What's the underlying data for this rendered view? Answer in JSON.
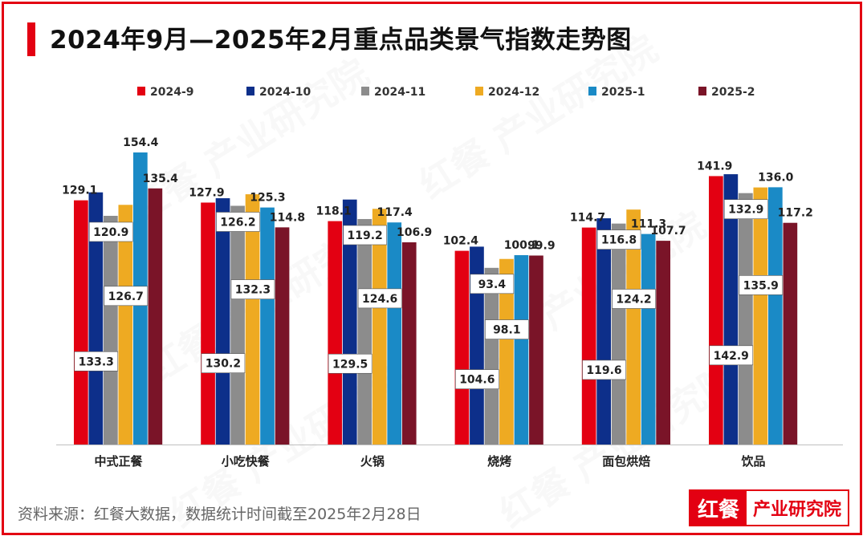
{
  "title": "2024年9月—2025年2月重点品类景气指数走势图",
  "source_text": "资料来源：红餐大数据，数据统计时间截至2025年2月28日",
  "logo": {
    "left": "红餐",
    "right": "产业研究院"
  },
  "watermark_text": "红餐 产业研究院",
  "colors": {
    "accent": "#e30012",
    "series": [
      "#e30012",
      "#0d2f8a",
      "#8c8c8c",
      "#eeaa22",
      "#1a8ac6",
      "#7a1428"
    ]
  },
  "chart_data": {
    "type": "bar",
    "title": "2024年9月—2025年2月重点品类景气指数走势图",
    "xlabel": "",
    "ylabel": "",
    "categories": [
      "中式正餐",
      "小吃快餐",
      "火锅",
      "烧烤",
      "面包烘焙",
      "饮品"
    ],
    "series": [
      {
        "name": "2024-9",
        "values": [
          129.1,
          127.9,
          118.1,
          102.4,
          114.7,
          141.9
        ]
      },
      {
        "name": "2024-10",
        "values": [
          133.3,
          130.2,
          129.5,
          104.6,
          119.6,
          142.9
        ]
      },
      {
        "name": "2024-11",
        "values": [
          120.9,
          126.2,
          119.2,
          93.4,
          116.8,
          132.9
        ]
      },
      {
        "name": "2024-12",
        "values": [
          126.7,
          132.3,
          124.6,
          98.1,
          124.2,
          135.9
        ]
      },
      {
        "name": "2025-1",
        "values": [
          154.4,
          125.3,
          117.4,
          100.1,
          111.3,
          136.0
        ]
      },
      {
        "name": "2025-2",
        "values": [
          135.4,
          114.8,
          106.9,
          99.9,
          107.7,
          117.2
        ]
      }
    ],
    "ylim": [
      0,
      165
    ],
    "grid": false,
    "legend_position": "top"
  }
}
